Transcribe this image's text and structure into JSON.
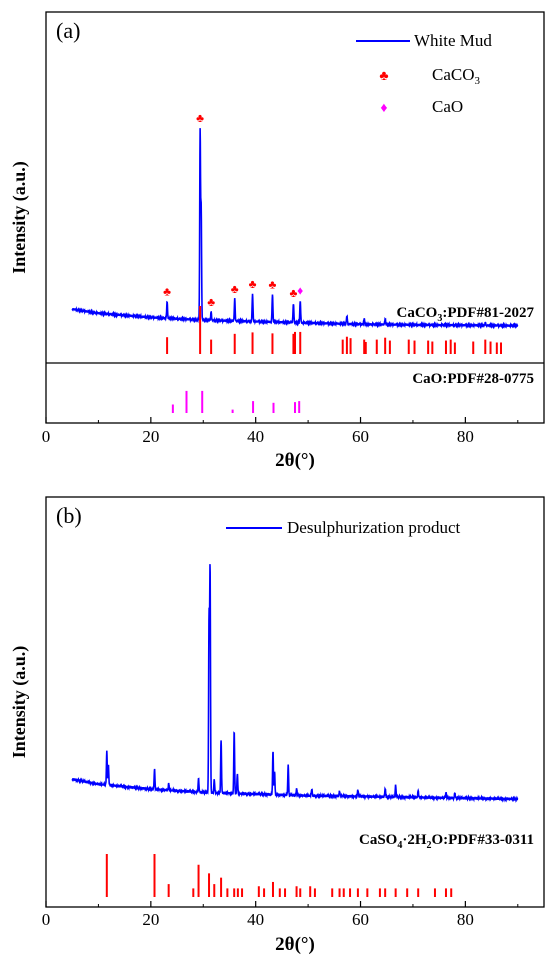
{
  "colors": {
    "pattern": "#0000ff",
    "caco3_ref": "#ff0000",
    "cao_ref": "#ff00ff",
    "axes": "#000000"
  },
  "chart_data": [
    {
      "panel_label": "(a)",
      "type": "line",
      "xlabel": "2θ(°)",
      "ylabel": "Intensity (a.u.)",
      "xlim": [
        0,
        95
      ],
      "xticks": [
        0,
        20,
        40,
        60,
        80
      ],
      "xtick_labels": [
        "0",
        "20",
        "40",
        "60",
        "80"
      ],
      "ylim": [
        0,
        1
      ],
      "legend_position": "top-right",
      "series": [
        {
          "name": "White Mud",
          "baseline": [
            [
              5,
              0.17
            ],
            [
              10,
              0.155
            ],
            [
              20,
              0.14
            ],
            [
              30,
              0.13
            ],
            [
              40,
              0.125
            ],
            [
              50,
              0.12
            ],
            [
              60,
              0.115
            ],
            [
              70,
              0.113
            ],
            [
              90,
              0.11
            ]
          ],
          "peaks": [
            [
              23.1,
              0.06
            ],
            [
              29.4,
              0.68
            ],
            [
              29.6,
              0.4
            ],
            [
              31.5,
              0.03
            ],
            [
              36.0,
              0.08
            ],
            [
              39.4,
              0.1
            ],
            [
              43.2,
              0.1
            ],
            [
              47.2,
              0.07
            ],
            [
              48.5,
              0.08
            ],
            [
              57.4,
              0.03
            ],
            [
              60.7,
              0.02
            ],
            [
              64.7,
              0.02
            ],
            [
              83.8,
              0.01
            ]
          ]
        }
      ],
      "marker_groups": [
        {
          "name": "CaCO3",
          "label_main": "CaCO",
          "label_sub": "3",
          "symbol": "♣",
          "color": "#ff0000",
          "x": [
            23.1,
            29.4,
            31.5,
            36.0,
            39.4,
            43.2,
            47.2
          ]
        },
        {
          "name": "CaO",
          "label_main": "CaO",
          "symbol": "♦",
          "color": "#ff00ff",
          "x": [
            48.5
          ]
        }
      ],
      "reference_patterns": [
        {
          "name": "CaCO3:PDF#81-2027",
          "label_main": "CaCO",
          "label_sub": "3",
          "label_rest": ":PDF#81-2027",
          "color": "#ff0000",
          "sticks": [
            [
              23.1,
              0.35
            ],
            [
              29.4,
              1.0
            ],
            [
              31.5,
              0.3
            ],
            [
              36.0,
              0.42
            ],
            [
              39.4,
              0.45
            ],
            [
              43.2,
              0.43
            ],
            [
              47.2,
              0.42
            ],
            [
              47.5,
              0.46
            ],
            [
              48.5,
              0.46
            ],
            [
              56.6,
              0.3
            ],
            [
              57.4,
              0.36
            ],
            [
              58.1,
              0.33
            ],
            [
              60.7,
              0.3
            ],
            [
              61.0,
              0.25
            ],
            [
              63.1,
              0.3
            ],
            [
              64.7,
              0.34
            ],
            [
              65.6,
              0.28
            ],
            [
              69.2,
              0.3
            ],
            [
              70.3,
              0.28
            ],
            [
              72.9,
              0.28
            ],
            [
              73.7,
              0.26
            ],
            [
              76.3,
              0.28
            ],
            [
              77.2,
              0.3
            ],
            [
              78.0,
              0.24
            ],
            [
              81.5,
              0.26
            ],
            [
              83.8,
              0.3
            ],
            [
              84.8,
              0.26
            ],
            [
              86.0,
              0.24
            ],
            [
              86.8,
              0.24
            ]
          ]
        },
        {
          "name": "CaO:PDF#28-0775",
          "label_main": "CaO:PDF#28-0775",
          "color": "#ff00ff",
          "sticks": [
            [
              24.2,
              0.25
            ],
            [
              26.8,
              0.65
            ],
            [
              29.8,
              0.65
            ],
            [
              35.6,
              0.1
            ],
            [
              39.5,
              0.35
            ],
            [
              43.4,
              0.3
            ],
            [
              47.5,
              0.32
            ],
            [
              48.3,
              0.35
            ]
          ]
        }
      ]
    },
    {
      "panel_label": "(b)",
      "type": "line",
      "xlabel": "2θ(°)",
      "ylabel": "Intensity (a.u.)",
      "xlim": [
        0,
        95
      ],
      "xticks": [
        0,
        20,
        40,
        60,
        80
      ],
      "xtick_labels": [
        "0",
        "20",
        "40",
        "60",
        "80"
      ],
      "ylim": [
        0,
        1
      ],
      "legend_position": "top-right",
      "series": [
        {
          "name": "Desulphurization product",
          "baseline": [
            [
              5,
              0.26
            ],
            [
              10,
              0.245
            ],
            [
              20,
              0.23
            ],
            [
              30,
              0.22
            ],
            [
              40,
              0.215
            ],
            [
              50,
              0.21
            ],
            [
              60,
              0.208
            ],
            [
              70,
              0.205
            ],
            [
              90,
              0.2
            ]
          ],
          "peaks": [
            [
              11.6,
              0.1
            ],
            [
              11.9,
              0.06
            ],
            [
              20.7,
              0.06
            ],
            [
              23.4,
              0.02
            ],
            [
              29.1,
              0.04
            ],
            [
              31.1,
              0.53
            ],
            [
              31.3,
              0.68
            ],
            [
              32.1,
              0.04
            ],
            [
              33.4,
              0.16
            ],
            [
              35.9,
              0.19
            ],
            [
              36.5,
              0.06
            ],
            [
              43.3,
              0.13
            ],
            [
              43.6,
              0.07
            ],
            [
              47.8,
              0.02
            ],
            [
              46.2,
              0.09
            ],
            [
              50.7,
              0.02
            ],
            [
              56.0,
              0.015
            ],
            [
              59.5,
              0.02
            ],
            [
              64.7,
              0.025
            ],
            [
              66.7,
              0.035
            ],
            [
              71.0,
              0.02
            ],
            [
              76.3,
              0.015
            ],
            [
              78.0,
              0.015
            ]
          ]
        }
      ],
      "reference_patterns": [
        {
          "name": "CaSO4·2H2O:PDF#33-0311",
          "label_main": "CaSO",
          "label_sub": "4",
          "label_mid": "·2H",
          "label_sub2": "2",
          "label_rest": "O:PDF#33-0311",
          "color": "#ff0000",
          "sticks": [
            [
              11.6,
              1.0
            ],
            [
              20.7,
              1.0
            ],
            [
              23.4,
              0.3
            ],
            [
              28.1,
              0.2
            ],
            [
              29.1,
              0.75
            ],
            [
              31.1,
              0.55
            ],
            [
              32.1,
              0.3
            ],
            [
              33.4,
              0.45
            ],
            [
              34.6,
              0.2
            ],
            [
              35.9,
              0.2
            ],
            [
              36.6,
              0.2
            ],
            [
              37.4,
              0.2
            ],
            [
              40.6,
              0.25
            ],
            [
              41.6,
              0.2
            ],
            [
              43.3,
              0.35
            ],
            [
              44.6,
              0.2
            ],
            [
              45.6,
              0.2
            ],
            [
              47.8,
              0.25
            ],
            [
              48.5,
              0.2
            ],
            [
              50.4,
              0.25
            ],
            [
              51.3,
              0.2
            ],
            [
              54.6,
              0.2
            ],
            [
              56.0,
              0.2
            ],
            [
              56.8,
              0.2
            ],
            [
              58.0,
              0.2
            ],
            [
              59.5,
              0.2
            ],
            [
              61.3,
              0.2
            ],
            [
              63.7,
              0.2
            ],
            [
              64.7,
              0.2
            ],
            [
              66.7,
              0.2
            ],
            [
              68.9,
              0.2
            ],
            [
              71.0,
              0.2
            ],
            [
              74.2,
              0.2
            ],
            [
              76.3,
              0.2
            ],
            [
              77.3,
              0.2
            ]
          ]
        }
      ]
    }
  ]
}
